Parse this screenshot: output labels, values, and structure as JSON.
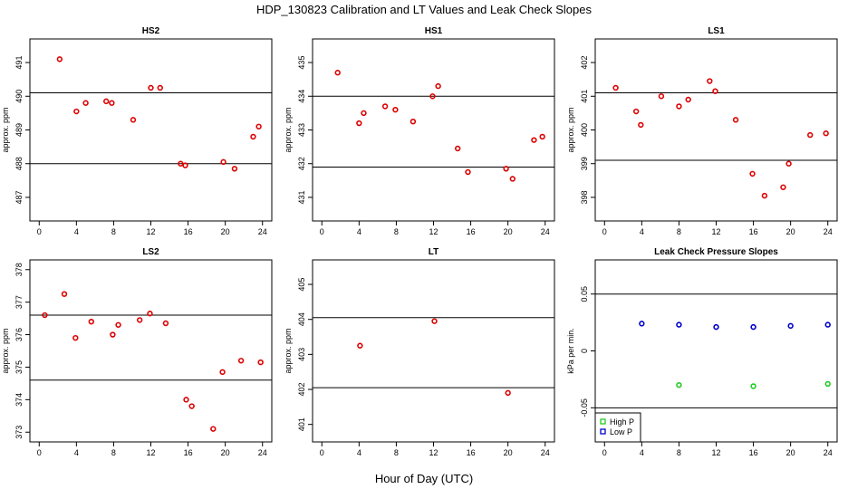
{
  "figure": {
    "title": "HDP_130823  Calibration and LT Values and Leak Check Slopes",
    "xlabel": "Hour of Day (UTC)"
  },
  "chart_data": [
    {
      "id": "hs2",
      "type": "scatter",
      "title": "HS2",
      "ylabel": "approx. ppm",
      "xlim": [
        -1,
        25
      ],
      "ylim": [
        486.3,
        491.7
      ],
      "xticks": [
        0,
        4,
        8,
        12,
        16,
        20,
        24
      ],
      "yticks": [
        487,
        488,
        489,
        490,
        491
      ],
      "hlines": [
        488.0,
        490.1
      ],
      "color": "#dd0000",
      "x": [
        2.2,
        4.0,
        5.0,
        7.2,
        7.8,
        10.1,
        12.0,
        13.0,
        15.2,
        15.7,
        19.8,
        21.0,
        23.0,
        23.6
      ],
      "y": [
        491.1,
        489.55,
        489.8,
        489.85,
        489.8,
        489.3,
        490.25,
        490.25,
        488.0,
        487.95,
        488.05,
        487.85,
        488.8,
        489.1
      ]
    },
    {
      "id": "hs1",
      "type": "scatter",
      "title": "HS1",
      "ylabel": "approx. ppm",
      "xlim": [
        -1,
        25
      ],
      "ylim": [
        430.3,
        435.7
      ],
      "xticks": [
        0,
        4,
        8,
        12,
        16,
        20,
        24
      ],
      "yticks": [
        431,
        432,
        433,
        434,
        435
      ],
      "hlines": [
        431.9,
        434.0
      ],
      "color": "#dd0000",
      "x": [
        1.7,
        4.0,
        4.5,
        6.8,
        7.9,
        9.8,
        11.9,
        12.5,
        14.6,
        15.7,
        19.8,
        20.5,
        22.8,
        23.7
      ],
      "y": [
        434.7,
        433.2,
        433.5,
        433.7,
        433.6,
        433.25,
        434.0,
        434.3,
        432.45,
        431.75,
        431.85,
        431.55,
        432.7,
        432.8
      ]
    },
    {
      "id": "ls1",
      "type": "scatter",
      "title": "LS1",
      "ylabel": "approx. ppm",
      "xlim": [
        -1,
        25
      ],
      "ylim": [
        397.3,
        402.7
      ],
      "xticks": [
        0,
        4,
        8,
        12,
        16,
        20,
        24
      ],
      "yticks": [
        398,
        399,
        400,
        401,
        402
      ],
      "hlines": [
        399.1,
        401.1
      ],
      "color": "#dd0000",
      "x": [
        1.2,
        3.4,
        3.9,
        6.1,
        8.0,
        9.0,
        11.3,
        11.9,
        14.1,
        15.9,
        17.2,
        19.2,
        19.8,
        22.1,
        23.8
      ],
      "y": [
        401.25,
        400.55,
        400.15,
        401.0,
        400.7,
        400.9,
        401.45,
        401.15,
        400.3,
        398.7,
        398.05,
        398.3,
        399.0,
        399.85,
        399.9
      ]
    },
    {
      "id": "ls2",
      "type": "scatter",
      "title": "LS2",
      "ylabel": "approx. ppm",
      "xlim": [
        -1,
        25
      ],
      "ylim": [
        372.7,
        378.3
      ],
      "xticks": [
        0,
        4,
        8,
        12,
        16,
        20,
        24
      ],
      "yticks": [
        373,
        374,
        375,
        376,
        377,
        378
      ],
      "hlines": [
        374.6,
        376.6
      ],
      "color": "#dd0000",
      "x": [
        0.6,
        2.7,
        3.9,
        5.6,
        7.9,
        8.5,
        10.8,
        11.9,
        13.6,
        15.8,
        16.4,
        18.7,
        19.7,
        21.7,
        23.8
      ],
      "y": [
        376.6,
        377.25,
        375.9,
        376.4,
        376.0,
        376.3,
        376.45,
        376.65,
        376.35,
        374.0,
        373.8,
        373.1,
        374.85,
        375.2,
        375.15
      ]
    },
    {
      "id": "lt",
      "type": "scatter",
      "title": "LT",
      "ylabel": "approx. ppm",
      "xlim": [
        -1,
        25
      ],
      "ylim": [
        400.5,
        405.7
      ],
      "xticks": [
        0,
        4,
        8,
        12,
        16,
        20,
        24
      ],
      "yticks": [
        401,
        402,
        403,
        404,
        405
      ],
      "hlines": [
        402.05,
        404.05
      ],
      "color": "#dd0000",
      "x": [
        4.1,
        12.1,
        20.0
      ],
      "y": [
        403.25,
        403.95,
        401.9
      ]
    },
    {
      "id": "leak",
      "type": "scatter",
      "title": "Leak Check Pressure Slopes",
      "ylabel": "kPa per min.",
      "xlim": [
        -1,
        25
      ],
      "ylim": [
        -0.08,
        0.08
      ],
      "xticks": [
        0,
        4,
        8,
        12,
        16,
        20,
        24
      ],
      "yticks": [
        -0.05,
        0.0,
        0.05
      ],
      "hlines": [
        -0.05,
        0.05
      ],
      "series": [
        {
          "name": "High P",
          "color": "#22cc22",
          "x": [
            8,
            16,
            24
          ],
          "y": [
            -0.03,
            -0.031,
            -0.029
          ]
        },
        {
          "name": "Low P",
          "color": "#0000cc",
          "x": [
            4,
            8,
            12,
            16,
            20,
            24
          ],
          "y": [
            0.024,
            0.023,
            0.021,
            0.021,
            0.022,
            0.023
          ]
        }
      ],
      "legend": "bottom-left"
    }
  ]
}
